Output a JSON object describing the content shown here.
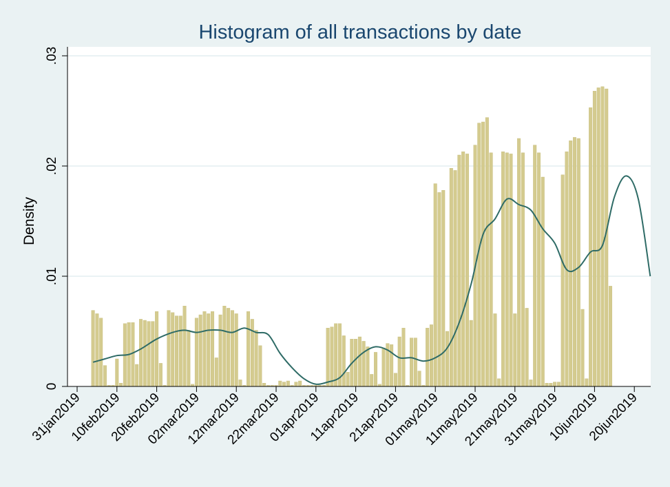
{
  "chart_data": {
    "type": "bar",
    "title": "Histogram of all transactions by date",
    "xlabel": "",
    "ylabel": "Density",
    "ylim": [
      0,
      0.03
    ],
    "yticks": [
      {
        "value": 0,
        "label": "0"
      },
      {
        "value": 0.01,
        "label": ".01"
      },
      {
        "value": 0.02,
        "label": ".02"
      },
      {
        "value": 0.03,
        "label": ".03"
      }
    ],
    "xlim": [
      "2019-01-31",
      "2019-06-25"
    ],
    "xticks": [
      "31jan2019",
      "10feb2019",
      "20feb2019",
      "02mar2019",
      "12mar2019",
      "22mar2019",
      "01apr2019",
      "11apr2019",
      "21apr2019",
      "01may2019",
      "11may2019",
      "21may2019",
      "31may2019",
      "10jun2019",
      "20jun2019"
    ],
    "grid": true,
    "bin_start": "2019-02-04",
    "bin_width_days": 1,
    "series": [
      {
        "values": [
          0.0069,
          0.0066,
          0.0062,
          0.0019,
          0.0001,
          0.0001,
          0.0025,
          0.0003,
          0.0057,
          0.0058,
          0.0058,
          0.002,
          0.0061,
          0.006,
          0.0059,
          0.0059,
          0.0068,
          0.0021,
          0.0001,
          0.0069,
          0.0067,
          0.0064,
          0.0064,
          0.0073,
          0.0051,
          0.0002,
          0.0062,
          0.0065,
          0.0068,
          0.0066,
          0.0068,
          0.0026,
          0.0065,
          0.0073,
          0.0071,
          0.0069,
          0.0066,
          0.0006,
          0.0001,
          0.0068,
          0.0061,
          0.0051,
          0.0037,
          0.0003,
          0.0001,
          0.0001,
          0.0001,
          0.0005,
          0.0004,
          0.0005,
          0.0001,
          0.0004,
          0.0005,
          0.0001,
          0.0001,
          0.0001,
          0.0001,
          0.0001,
          0.0001,
          0.0053,
          0.0054,
          0.0057,
          0.0057,
          0.0046,
          0.0013,
          0.0043,
          0.0043,
          0.0045,
          0.0041,
          0.0036,
          0.0011,
          0.0031,
          0.0002,
          0.0035,
          0.0039,
          0.0038,
          0.0012,
          0.0045,
          0.0053,
          0.0001,
          0.0044,
          0.0044,
          0.0014,
          0.0001,
          0.0053,
          0.0056,
          0.0184,
          0.0176,
          0.0178,
          0.005,
          0.0198,
          0.0196,
          0.021,
          0.0213,
          0.0211,
          0.006,
          0.0219,
          0.0239,
          0.024,
          0.0244,
          0.0212,
          0.0066,
          0.0007,
          0.0213,
          0.0212,
          0.0211,
          0.0066,
          0.0225,
          0.0212,
          0.0071,
          0.0006,
          0.0219,
          0.0212,
          0.019,
          0.0003,
          0.0003,
          0.0004,
          0.0004,
          0.0192,
          0.0213,
          0.0223,
          0.0226,
          0.0225,
          0.007,
          0.0007,
          0.0253,
          0.0268,
          0.0271,
          0.0272,
          0.027,
          0.0091
        ]
      }
    ],
    "density_curve": {
      "x": [
        "2019-02-04",
        "2019-02-07",
        "2019-02-10",
        "2019-02-13",
        "2019-02-16",
        "2019-02-20",
        "2019-02-24",
        "2019-02-27",
        "2019-03-02",
        "2019-03-05",
        "2019-03-08",
        "2019-03-11",
        "2019-03-14",
        "2019-03-17",
        "2019-03-20",
        "2019-03-23",
        "2019-03-26",
        "2019-03-29",
        "2019-04-01",
        "2019-04-04",
        "2019-04-07",
        "2019-04-10",
        "2019-04-13",
        "2019-04-16",
        "2019-04-19",
        "2019-04-22",
        "2019-04-25",
        "2019-04-28",
        "2019-05-01",
        "2019-05-04",
        "2019-05-07",
        "2019-05-10",
        "2019-05-13",
        "2019-05-16",
        "2019-05-19",
        "2019-05-22",
        "2019-05-25",
        "2019-05-28",
        "2019-05-31",
        "2019-06-03",
        "2019-06-06",
        "2019-06-09",
        "2019-06-12",
        "2019-06-15",
        "2019-06-18",
        "2019-06-21",
        "2019-06-24"
      ],
      "y": [
        0.0022,
        0.0025,
        0.0028,
        0.0029,
        0.0034,
        0.0043,
        0.0049,
        0.0051,
        0.0049,
        0.0051,
        0.0051,
        0.0049,
        0.0053,
        0.0049,
        0.0047,
        0.003,
        0.0017,
        0.0007,
        0.0002,
        0.0004,
        0.0008,
        0.0021,
        0.0031,
        0.0036,
        0.0033,
        0.0026,
        0.0026,
        0.0023,
        0.0026,
        0.0035,
        0.0058,
        0.0093,
        0.0138,
        0.0152,
        0.017,
        0.0165,
        0.016,
        0.0143,
        0.013,
        0.0106,
        0.0108,
        0.0122,
        0.0128,
        0.0172,
        0.0191,
        0.017,
        0.01
      ]
    }
  }
}
